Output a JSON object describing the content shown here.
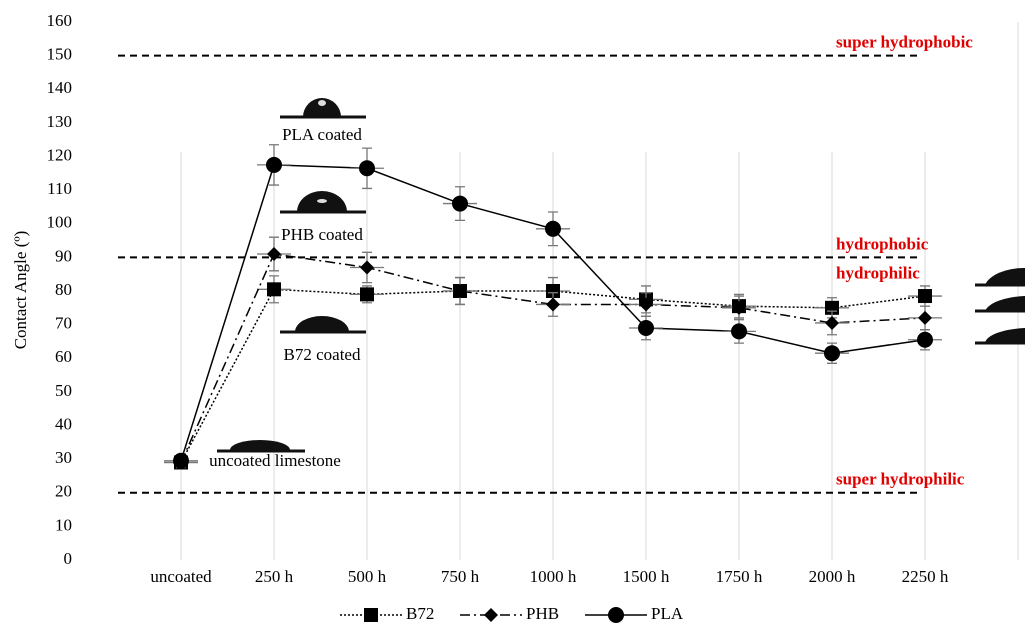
{
  "chart_data": {
    "type": "line",
    "y_label": "Contact Angle (º)",
    "categories": [
      "uncoated",
      "250 h",
      "500 h",
      "750 h",
      "1000 h",
      "1500 h",
      "1750 h",
      "2000 h",
      "2250 h"
    ],
    "ylim": [
      0,
      160
    ],
    "yticks": [
      0,
      10,
      20,
      30,
      40,
      50,
      60,
      70,
      80,
      90,
      100,
      110,
      120,
      130,
      140,
      150,
      160
    ],
    "grid": true,
    "legend": "bottom",
    "series": [
      {
        "name": "B72",
        "color": "#000000",
        "line_style": "dotted",
        "marker": "square",
        "values": [
          29,
          80.5,
          79,
          80,
          80,
          77.5,
          75.5,
          75,
          78.5
        ],
        "errors": [
          1.5,
          4,
          2.5,
          4,
          4,
          4,
          3.5,
          3,
          3
        ]
      },
      {
        "name": "PHB",
        "color": "#000000",
        "line_style": "dashdot",
        "marker": "diamond",
        "values": [
          29,
          91,
          87,
          80,
          76,
          76,
          75,
          70.5,
          72
        ],
        "errors": [
          1.5,
          5,
          4.5,
          4,
          3.5,
          3.5,
          3.5,
          3.5,
          3.5
        ]
      },
      {
        "name": "PLA",
        "color": "#000000",
        "line_style": "solid",
        "marker": "circle",
        "values": [
          29.5,
          117.5,
          116.5,
          106,
          98.5,
          69,
          68,
          61.5,
          65.5
        ],
        "errors": [
          1.5,
          6,
          6,
          5,
          5,
          3.5,
          3.5,
          3,
          3
        ]
      }
    ],
    "reference_lines": [
      {
        "value": 150,
        "labels": [
          "super hydrophobic"
        ],
        "color": "#e00000"
      },
      {
        "value": 90,
        "labels": [
          "hydrophobic",
          "hydrophilic"
        ],
        "color": "#e00000"
      },
      {
        "value": 20,
        "labels": [
          "super hydrophilic"
        ],
        "color": "#e00000"
      }
    ],
    "annotations": [
      "PLA coated",
      "PHB coated",
      "B72 coated",
      "uncoated limestone"
    ]
  }
}
